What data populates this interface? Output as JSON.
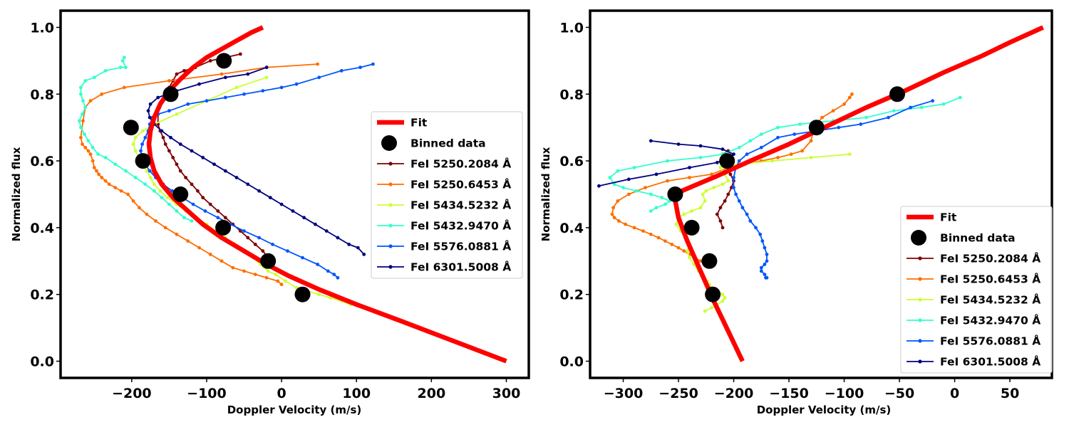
{
  "chart_data": [
    {
      "type": "line",
      "xlabel": "Doppler Velocity (m/s)",
      "ylabel": "Normalized flux",
      "xlim": [
        -295,
        330
      ],
      "ylim": [
        -0.05,
        1.05
      ],
      "xticks": [
        -200,
        -100,
        0,
        100,
        200,
        300
      ],
      "xtick_labels": [
        "−200",
        "−100",
        "0",
        "100",
        "200",
        "300"
      ],
      "yticks": [
        0.0,
        0.2,
        0.4,
        0.6,
        0.8,
        1.0
      ],
      "ytick_labels": [
        "0.0",
        "0.2",
        "0.4",
        "0.6",
        "0.8",
        "1.0"
      ],
      "legend_position": "center-right",
      "fit": {
        "name": "Fit",
        "color": "#ff0000",
        "x": [
          300,
          230,
          160,
          100,
          50,
          10,
          -20,
          -50,
          -80,
          -105,
          -125,
          -145,
          -160,
          -170,
          -175,
          -177,
          -175,
          -170,
          -162,
          -150,
          -135,
          -118,
          -100,
          -80,
          -60,
          -40,
          -25
        ],
        "y": [
          0.0,
          0.06,
          0.12,
          0.17,
          0.215,
          0.255,
          0.29,
          0.33,
          0.37,
          0.41,
          0.45,
          0.49,
          0.53,
          0.57,
          0.61,
          0.65,
          0.69,
          0.73,
          0.77,
          0.81,
          0.845,
          0.88,
          0.91,
          0.935,
          0.96,
          0.985,
          1.0
        ]
      },
      "binned": {
        "name": "Binned data",
        "x": [
          -77,
          -148,
          -201,
          -185,
          -135,
          -78,
          -18,
          28
        ],
        "y": [
          0.9,
          0.8,
          0.7,
          0.6,
          0.5,
          0.4,
          0.3,
          0.2
        ]
      },
      "series": [
        {
          "name": "FeI 5250.2084 Å",
          "color": "#7f0000",
          "x": [
            -55,
            -75,
            -95,
            -115,
            -130,
            -140,
            -145,
            -150,
            -155,
            -160,
            -163,
            -165,
            -165,
            -162,
            -158,
            -155,
            -150,
            -145,
            -140,
            -135,
            -128,
            -120,
            -112,
            -105,
            -95,
            -85,
            -75,
            -65,
            -55,
            -45,
            -35,
            -25,
            -18
          ],
          "y": [
            0.92,
            0.91,
            0.9,
            0.88,
            0.87,
            0.86,
            0.84,
            0.82,
            0.8,
            0.78,
            0.76,
            0.74,
            0.71,
            0.69,
            0.67,
            0.65,
            0.63,
            0.61,
            0.59,
            0.57,
            0.55,
            0.53,
            0.51,
            0.49,
            0.47,
            0.45,
            0.43,
            0.41,
            0.39,
            0.37,
            0.35,
            0.33,
            0.31
          ]
        },
        {
          "name": "FeI 5250.6453 Å",
          "color": "#ff6e00",
          "x": [
            48,
            -20,
            -80,
            -150,
            -210,
            -240,
            -255,
            -262,
            -265,
            -268,
            -266,
            -262,
            -258,
            -255,
            -252,
            -250,
            -247,
            -244,
            -240,
            -235,
            -230,
            -222,
            -214,
            -205,
            -198,
            -190,
            -180,
            -168,
            -155,
            -140,
            -125,
            -110,
            -95,
            -80,
            -65,
            -50,
            -35,
            -20,
            -5,
            0
          ],
          "y": [
            0.89,
            0.88,
            0.86,
            0.84,
            0.82,
            0.8,
            0.78,
            0.76,
            0.72,
            0.67,
            0.65,
            0.64,
            0.63,
            0.62,
            0.6,
            0.58,
            0.57,
            0.56,
            0.55,
            0.54,
            0.53,
            0.52,
            0.51,
            0.5,
            0.48,
            0.46,
            0.44,
            0.42,
            0.4,
            0.38,
            0.36,
            0.34,
            0.32,
            0.3,
            0.28,
            0.27,
            0.26,
            0.25,
            0.24,
            0.23
          ]
        },
        {
          "name": "FeI 5434.5232 Å",
          "color": "#ccff33",
          "x": [
            -20,
            -60,
            -100,
            -140,
            -170,
            -185,
            -195,
            -198,
            -195,
            -190,
            -185,
            -180,
            -175,
            -170,
            -162,
            -152,
            -140,
            -128,
            -115,
            -100,
            -88,
            -75,
            -62,
            -50,
            -38,
            -28,
            -18,
            -8,
            5,
            20,
            35,
            50,
            65,
            80,
            92
          ],
          "y": [
            0.85,
            0.82,
            0.78,
            0.74,
            0.71,
            0.69,
            0.67,
            0.65,
            0.63,
            0.61,
            0.59,
            0.57,
            0.55,
            0.53,
            0.51,
            0.49,
            0.47,
            0.45,
            0.43,
            0.41,
            0.39,
            0.37,
            0.35,
            0.33,
            0.31,
            0.29,
            0.27,
            0.26,
            0.24,
            0.22,
            0.21,
            0.2,
            0.19,
            0.18,
            0.17
          ]
        },
        {
          "name": "FeI 5432.9470 Å",
          "color": "#33ffcc",
          "x": [
            -210,
            -212,
            -208,
            -215,
            -235,
            -250,
            -262,
            -268,
            -268,
            -265,
            -262,
            -266,
            -270,
            -268,
            -263,
            -258,
            -252,
            -245,
            -235,
            -222,
            -208,
            -195,
            -182,
            -170,
            -160,
            -150,
            -140,
            -130,
            -120
          ],
          "y": [
            0.91,
            0.9,
            0.88,
            0.88,
            0.87,
            0.85,
            0.84,
            0.82,
            0.8,
            0.78,
            0.76,
            0.74,
            0.72,
            0.7,
            0.68,
            0.66,
            0.64,
            0.62,
            0.61,
            0.59,
            0.57,
            0.55,
            0.53,
            0.51,
            0.49,
            0.47,
            0.45,
            0.43,
            0.42
          ]
        },
        {
          "name": "FeI 5576.0881 Å",
          "color": "#0055ff",
          "x": [
            122,
            105,
            80,
            50,
            20,
            0,
            -25,
            -50,
            -75,
            -100,
            -125,
            -150,
            -165,
            -172,
            -176,
            -178,
            -182,
            -186,
            -188,
            -186,
            -182,
            -176,
            -168,
            -158,
            -146,
            -132,
            -118,
            -102,
            -85,
            -68,
            -50,
            -30,
            -12,
            8,
            28,
            48,
            62,
            70,
            75
          ],
          "y": [
            0.89,
            0.88,
            0.87,
            0.85,
            0.83,
            0.82,
            0.81,
            0.8,
            0.79,
            0.78,
            0.77,
            0.75,
            0.74,
            0.73,
            0.71,
            0.69,
            0.67,
            0.65,
            0.63,
            0.61,
            0.59,
            0.57,
            0.55,
            0.53,
            0.51,
            0.49,
            0.47,
            0.45,
            0.43,
            0.41,
            0.39,
            0.37,
            0.35,
            0.33,
            0.31,
            0.29,
            0.27,
            0.26,
            0.25
          ]
        },
        {
          "name": "FeI 6301.5008 Å",
          "color": "#00007f",
          "x": [
            -20,
            -45,
            -75,
            -110,
            -140,
            -165,
            -175,
            -178,
            -176,
            -170,
            -160,
            -148,
            -135,
            -120,
            -105,
            -90,
            -75,
            -60,
            -45,
            -30,
            -15,
            0,
            15,
            30,
            45,
            60,
            75,
            90,
            102,
            110
          ],
          "y": [
            0.88,
            0.86,
            0.85,
            0.83,
            0.81,
            0.79,
            0.77,
            0.75,
            0.73,
            0.71,
            0.69,
            0.67,
            0.65,
            0.63,
            0.61,
            0.59,
            0.57,
            0.55,
            0.53,
            0.51,
            0.49,
            0.47,
            0.45,
            0.43,
            0.41,
            0.39,
            0.37,
            0.35,
            0.34,
            0.32
          ]
        }
      ]
    },
    {
      "type": "line",
      "xlabel": "Doppler Velocity (m/s)",
      "ylabel": "Normalized flux",
      "xlim": [
        -330,
        88
      ],
      "ylim": [
        -0.05,
        1.05
      ],
      "xticks": [
        -300,
        -250,
        -200,
        -150,
        -100,
        -50,
        0,
        50
      ],
      "xtick_labels": [
        "−300",
        "−250",
        "−200",
        "−150",
        "−100",
        "−50",
        "0",
        "50"
      ],
      "yticks": [
        0.0,
        0.2,
        0.4,
        0.6,
        0.8,
        1.0
      ],
      "ytick_labels": [
        "0.0",
        "0.2",
        "0.4",
        "0.6",
        "0.8",
        "1.0"
      ],
      "legend_position": "lower-right",
      "fit": {
        "name": "Fit",
        "color": "#ff0000",
        "x": [
          -192,
          -205,
          -218,
          -230,
          -242,
          -250,
          -254,
          -240,
          -215,
          -185,
          -150,
          -115,
          -80,
          -45,
          -10,
          25,
          50,
          80
        ],
        "y": [
          0.0,
          0.09,
          0.18,
          0.27,
          0.36,
          0.43,
          0.5,
          0.52,
          0.555,
          0.6,
          0.65,
          0.705,
          0.76,
          0.81,
          0.865,
          0.915,
          0.955,
          1.0
        ]
      },
      "binned": {
        "name": "Binned data",
        "x": [
          -52,
          -125,
          -206,
          -253,
          -238,
          -222,
          -219
        ],
        "y": [
          0.8,
          0.7,
          0.6,
          0.5,
          0.4,
          0.3,
          0.2
        ]
      },
      "series": [
        {
          "name": "FeI 5250.2084 Å",
          "color": "#7f0000",
          "x": [
            -205,
            -210,
            -208,
            -205,
            -203,
            -200,
            -202,
            -205,
            -208,
            -212,
            -215,
            -212,
            -210
          ],
          "y": [
            0.63,
            0.62,
            0.6,
            0.58,
            0.56,
            0.54,
            0.52,
            0.5,
            0.48,
            0.46,
            0.44,
            0.42,
            0.4
          ]
        },
        {
          "name": "FeI 5250.6453 Å",
          "color": "#ff6e00",
          "x": [
            -93,
            -95,
            -100,
            -110,
            -120,
            -125,
            -128,
            -130,
            -138,
            -148,
            -160,
            -175,
            -190,
            -205,
            -220,
            -240,
            -260,
            -280,
            -295,
            -305,
            -309,
            -310,
            -308,
            -304,
            -298,
            -290,
            -282,
            -275,
            -268,
            -262,
            -256,
            -250,
            -245,
            -240,
            -235,
            -230,
            -225,
            -222
          ],
          "y": [
            0.8,
            0.79,
            0.77,
            0.75,
            0.73,
            0.71,
            0.69,
            0.66,
            0.63,
            0.62,
            0.61,
            0.6,
            0.59,
            0.58,
            0.56,
            0.55,
            0.54,
            0.52,
            0.5,
            0.48,
            0.46,
            0.44,
            0.43,
            0.42,
            0.41,
            0.4,
            0.39,
            0.38,
            0.37,
            0.36,
            0.35,
            0.34,
            0.33,
            0.32,
            0.31,
            0.3,
            0.29,
            0.29
          ]
        },
        {
          "name": "FeI 5434.5232 Å",
          "color": "#ccff33",
          "x": [
            -95,
            -130,
            -165,
            -195,
            -212,
            -208,
            -205,
            -210,
            -218,
            -225,
            -228,
            -226,
            -230,
            -238,
            -245,
            -250,
            -252,
            -248,
            -244,
            -240,
            -242,
            -240,
            -236,
            -232,
            -228,
            -224,
            -222,
            -220,
            -215,
            -210,
            -208,
            -210,
            -215,
            -220,
            -226
          ],
          "y": [
            0.62,
            0.61,
            0.6,
            0.59,
            0.58,
            0.56,
            0.54,
            0.53,
            0.52,
            0.51,
            0.5,
            0.48,
            0.46,
            0.45,
            0.44,
            0.43,
            0.41,
            0.39,
            0.37,
            0.35,
            0.33,
            0.31,
            0.29,
            0.27,
            0.25,
            0.24,
            0.23,
            0.22,
            0.21,
            0.2,
            0.19,
            0.18,
            0.17,
            0.16,
            0.15
          ]
        },
        {
          "name": "FeI 5432.9470 Å",
          "color": "#33ffcc",
          "x": [
            5,
            -10,
            -30,
            -55,
            -80,
            -110,
            -140,
            -160,
            -175,
            -185,
            -195,
            -210,
            -230,
            -260,
            -290,
            -305,
            -312,
            -308,
            -300,
            -288,
            -275,
            -265,
            -258,
            -262,
            -270,
            -275
          ],
          "y": [
            0.79,
            0.77,
            0.76,
            0.75,
            0.73,
            0.72,
            0.71,
            0.7,
            0.68,
            0.66,
            0.64,
            0.62,
            0.61,
            0.6,
            0.58,
            0.57,
            0.55,
            0.53,
            0.52,
            0.51,
            0.5,
            0.49,
            0.48,
            0.47,
            0.46,
            0.45
          ]
        },
        {
          "name": "FeI 5576.0881 Å",
          "color": "#0055ff",
          "x": [
            -20,
            -40,
            -60,
            -85,
            -105,
            -125,
            -145,
            -160,
            -175,
            -188,
            -195,
            -198,
            -200,
            -200,
            -198,
            -195,
            -192,
            -188,
            -185,
            -180,
            -176,
            -174,
            -172,
            -170,
            -170,
            -172,
            -175,
            -175,
            -172,
            -170,
            -171
          ],
          "y": [
            0.78,
            0.76,
            0.73,
            0.71,
            0.7,
            0.69,
            0.68,
            0.67,
            0.64,
            0.62,
            0.6,
            0.58,
            0.55,
            0.52,
            0.5,
            0.48,
            0.46,
            0.44,
            0.42,
            0.4,
            0.38,
            0.36,
            0.34,
            0.32,
            0.3,
            0.29,
            0.28,
            0.27,
            0.26,
            0.25,
            0.25
          ]
        },
        {
          "name": "FeI 6301.5008 Å",
          "color": "#00007f",
          "x": [
            -275,
            -250,
            -230,
            -210,
            -200,
            -215,
            -240,
            -270,
            -295,
            -322
          ],
          "y": [
            0.66,
            0.65,
            0.645,
            0.635,
            0.62,
            0.595,
            0.58,
            0.56,
            0.545,
            0.525
          ]
        }
      ]
    }
  ]
}
